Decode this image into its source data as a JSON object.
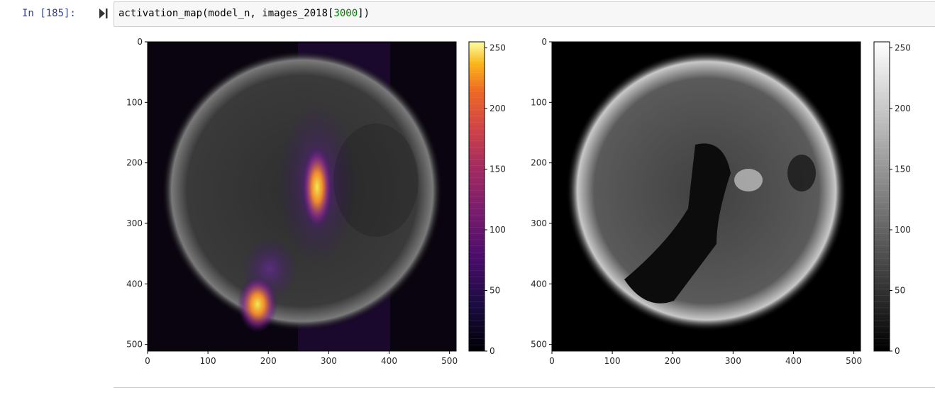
{
  "cell": {
    "prompt": "In [185]:",
    "code": {
      "fn": "activation_map(model_n, images_2018[",
      "number": "3000",
      "end": "])"
    }
  },
  "chart_data": [
    {
      "type": "heatmap",
      "description_of_data": "activation overlay on solar disk image",
      "xlim": [
        0,
        511
      ],
      "ylim": [
        511,
        0
      ],
      "xticks": [
        "0",
        "100",
        "200",
        "300",
        "400",
        "500"
      ],
      "yticks": [
        "0",
        "100",
        "200",
        "300",
        "400",
        "500"
      ],
      "colormap": "inferno",
      "colorbar_ticks": [
        "250",
        "200",
        "150",
        "100",
        "50",
        "0"
      ],
      "colorbar_range": [
        0,
        255
      ]
    },
    {
      "type": "heatmap",
      "xlim": [
        0,
        511
      ],
      "ylim": [
        511,
        0
      ],
      "xticks": [
        "0",
        "100",
        "200",
        "300",
        "400",
        "500"
      ],
      "yticks": [
        "0",
        "100",
        "200",
        "300",
        "400",
        "500"
      ],
      "colormap": "gray",
      "colorbar_ticks": [
        "250",
        "200",
        "150",
        "100",
        "50",
        "0"
      ],
      "colorbar_range": [
        0,
        255
      ]
    }
  ]
}
